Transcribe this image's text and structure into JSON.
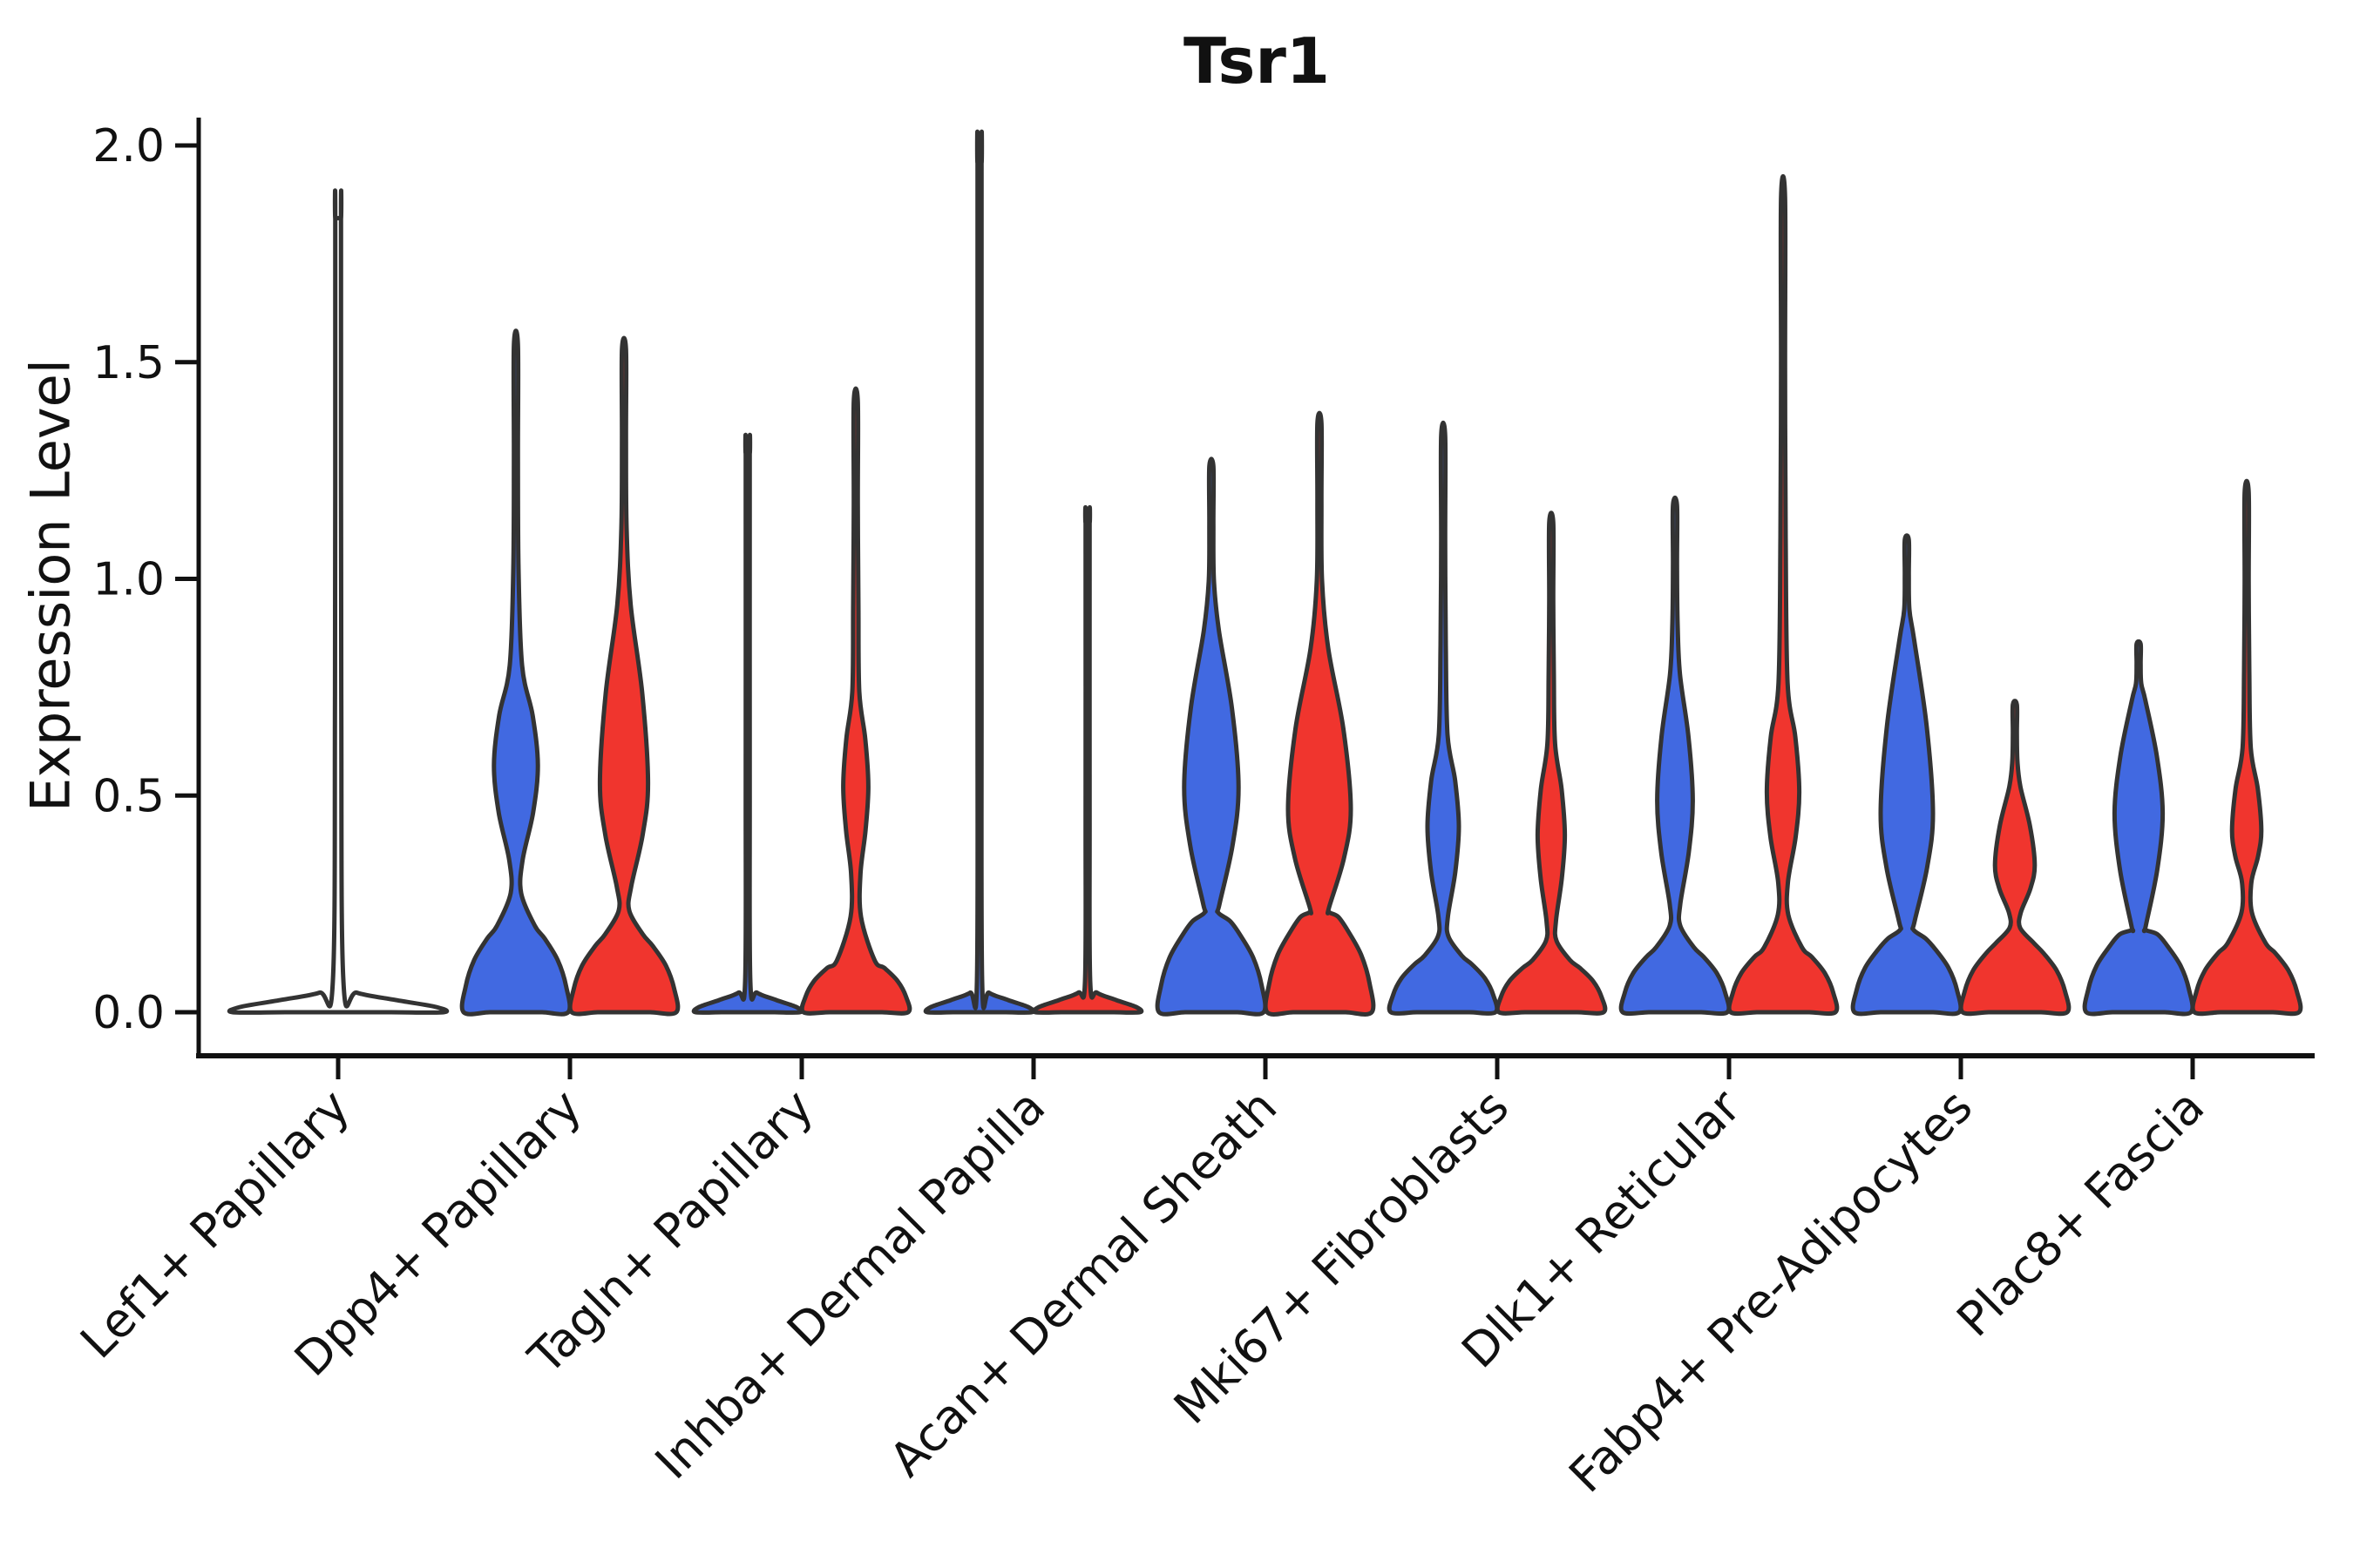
{
  "figure": {
    "background": "#ffffff"
  },
  "chart_data": {
    "type": "violin",
    "title": "Tsr1",
    "ylabel": "Expression Level",
    "xlabel": "",
    "ylim": [
      0,
      2.05
    ],
    "yticks": [
      0,
      0.5,
      1,
      1.5,
      2
    ],
    "ytick_labels": [
      "0.0",
      "0.5",
      "1.0",
      "1.5",
      "2.0"
    ],
    "grid": false,
    "legend": null,
    "colors": {
      "group_blue": "#4169E1",
      "group_red": "#F0352E",
      "outline": "#333333"
    },
    "categories": [
      "Lef1+ Papillary",
      "Dpp4+ Papillary",
      "Tagln+ Papillary",
      "Inhba+ Dermal Papilla",
      "Acan+ Dermal Sheath",
      "Mki67+ Fibroblasts",
      "Dlk1+ Reticular",
      "Fabp4+ Pre-Adipocytes",
      "Plac8+ Fascia"
    ],
    "violins": [
      {
        "category": "Lef1+ Papillary",
        "side": "center",
        "color": "#ffffff",
        "max_expression": 1.83,
        "shape": {
          "type": "flat"
        }
      },
      {
        "category": "Dpp4+ Papillary",
        "side": "left",
        "color": "#4169E1",
        "max_expression": 1.54,
        "shape": {
          "type": "bulge",
          "blob_top": 0.2,
          "bulge": [
            0.35,
            0.57,
            0.8
          ],
          "bulge_width": 0.42
        }
      },
      {
        "category": "Dpp4+ Papillary",
        "side": "right",
        "color": "#F0352E",
        "max_expression": 1.53,
        "shape": {
          "type": "bulge",
          "blob_top": 0.18,
          "bulge": [
            0.29,
            0.53,
            0.94
          ],
          "bulge_width": 0.46
        }
      },
      {
        "category": "Tagln+ Papillary",
        "side": "left",
        "color": "#4169E1",
        "max_expression": 1.29,
        "shape": {
          "type": "flat"
        }
      },
      {
        "category": "Tagln+ Papillary",
        "side": "right",
        "color": "#F0352E",
        "max_expression": 1.41,
        "shape": {
          "type": "bulge",
          "blob_top": 0.12,
          "bulge": [
            0.32,
            0.52,
            0.74
          ],
          "bulge_width": 0.24
        }
      },
      {
        "category": "Inhba+ Dermal Papilla",
        "side": "left",
        "color": "#4169E1",
        "max_expression": 1.96,
        "shape": {
          "type": "flat"
        }
      },
      {
        "category": "Inhba+ Dermal Papilla",
        "side": "right",
        "color": "#F0352E",
        "max_expression": 1.13,
        "shape": {
          "type": "flat"
        }
      },
      {
        "category": "Acan+ Dermal Sheath",
        "side": "left",
        "color": "#4169E1",
        "max_expression": 1.26,
        "shape": {
          "type": "bulge",
          "blob_top": 0.21,
          "bulge": [
            0.25,
            0.52,
            0.88
          ],
          "bulge_width": 0.52,
          "neck": 0.13
        }
      },
      {
        "category": "Acan+ Dermal Sheath",
        "side": "right",
        "color": "#F0352E",
        "max_expression": 1.36,
        "shape": {
          "type": "bulge",
          "blob_top": 0.22,
          "bulge": [
            0.24,
            0.47,
            0.84
          ],
          "bulge_width": 0.6,
          "neck": 0.2
        }
      },
      {
        "category": "Mki67+ Fibroblasts",
        "side": "left",
        "color": "#4169E1",
        "max_expression": 1.33,
        "shape": {
          "type": "bulge",
          "blob_top": 0.13,
          "bulge": [
            0.22,
            0.43,
            0.64
          ],
          "bulge_width": 0.3
        }
      },
      {
        "category": "Mki67+ Fibroblasts",
        "side": "right",
        "color": "#F0352E",
        "max_expression": 1.13,
        "shape": {
          "type": "bulge",
          "blob_top": 0.12,
          "bulge": [
            0.21,
            0.41,
            0.62
          ],
          "bulge_width": 0.26
        }
      },
      {
        "category": "Dlk1+ Reticular",
        "side": "left",
        "color": "#4169E1",
        "max_expression": 1.17,
        "shape": {
          "type": "bulge",
          "blob_top": 0.15,
          "bulge": [
            0.25,
            0.49,
            0.78
          ],
          "bulge_width": 0.34
        }
      },
      {
        "category": "Dlk1+ Reticular",
        "side": "right",
        "color": "#F0352E",
        "max_expression": 1.88,
        "shape": {
          "type": "bulge",
          "blob_top": 0.15,
          "bulge": [
            0.3,
            0.51,
            0.76
          ],
          "bulge_width": 0.31
        }
      },
      {
        "category": "Fabp4+ Pre-Adipocytes",
        "side": "left",
        "color": "#4169E1",
        "max_expression": 1.09,
        "shape": {
          "type": "bulge",
          "blob_top": 0.17,
          "bulge": [
            0.21,
            0.46,
            0.86
          ],
          "bulge_width": 0.5,
          "neck": 0.13
        }
      },
      {
        "category": "Fabp4+ Pre-Adipocytes",
        "side": "right",
        "color": "#F0352E",
        "max_expression": 0.71,
        "shape": {
          "type": "bulge",
          "blob_top": 0.16,
          "bulge": [
            0.23,
            0.34,
            0.52
          ],
          "bulge_width": 0.38
        }
      },
      {
        "category": "Plac8+ Fascia",
        "side": "left",
        "color": "#4169E1",
        "max_expression": 0.85,
        "shape": {
          "type": "bulge",
          "blob_top": 0.18,
          "bulge": [
            0.2,
            0.46,
            0.72
          ],
          "bulge_width": 0.46,
          "neck": 0.13
        }
      },
      {
        "category": "Plac8+ Fascia",
        "side": "right",
        "color": "#F0352E",
        "max_expression": 1.2,
        "shape": {
          "type": "bulge",
          "blob_top": 0.16,
          "bulge": [
            0.3,
            0.42,
            0.61
          ],
          "bulge_width": 0.28
        }
      }
    ]
  }
}
